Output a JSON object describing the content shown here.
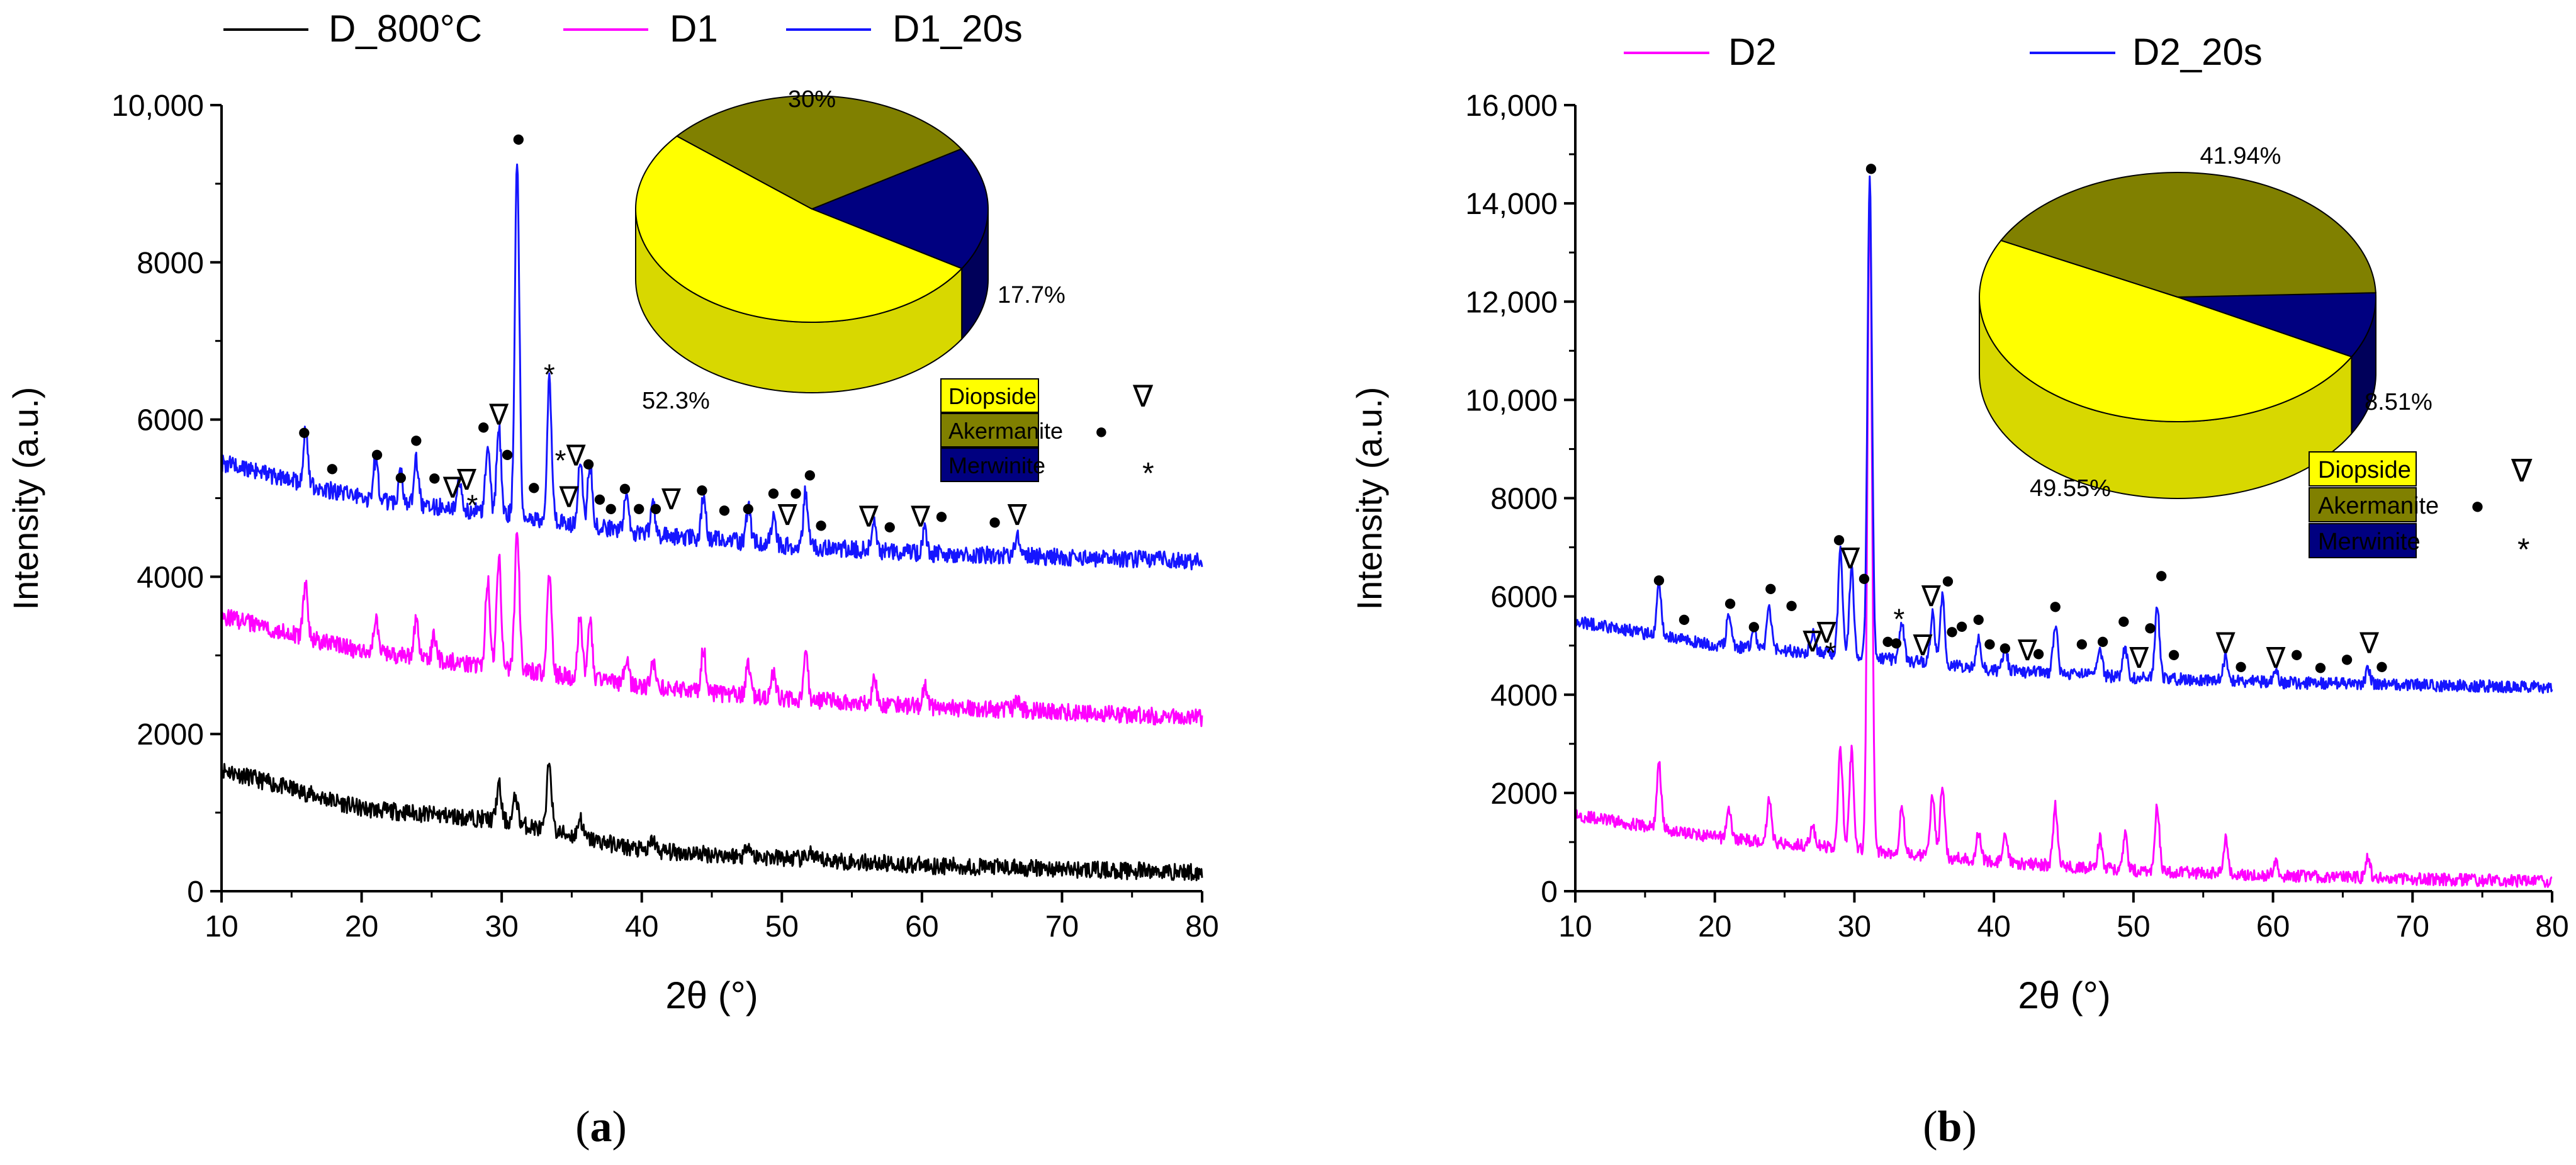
{
  "colors": {
    "black": "#000000",
    "magenta": "#ff00ff",
    "blue": "#1515ff",
    "diopside": "#ffff00",
    "diopside_side": "#d8d800",
    "akermanite": "#808000",
    "akermanite_side": "#5c5c00",
    "merwinite": "#000080",
    "merwinite_side": "#00005a"
  },
  "chart_data": [
    {
      "type": "line",
      "panel_label": "(a)",
      "panel_letter": "a",
      "xlabel": "2θ (°)",
      "ylabel": "Intensity (a.u.)",
      "xlim": [
        10,
        80
      ],
      "ylim": [
        0,
        10000
      ],
      "xticks": [
        "10",
        "20",
        "30",
        "40",
        "50",
        "60",
        "70",
        "80"
      ],
      "yticks": [
        "0",
        "2000",
        "4000",
        "6000",
        "8000",
        "10,000"
      ],
      "legend": [
        {
          "name": "D_800°C",
          "color": "#000000"
        },
        {
          "name": "D1",
          "color": "#ff00ff"
        },
        {
          "name": "D1_20s",
          "color": "#1515ff"
        }
      ],
      "series": [
        {
          "name": "D_800°C",
          "color": "#000000",
          "baseline": [
            [
              10,
              1550
            ],
            [
              20,
              1050
            ],
            [
              30,
              900
            ],
            [
              40,
              520
            ],
            [
              50,
              420
            ],
            [
              60,
              330
            ],
            [
              70,
              280
            ],
            [
              80,
              240
            ]
          ],
          "peaks": [
            [
              29.8,
              450
            ],
            [
              31.0,
              350
            ],
            [
              33.4,
              900
            ],
            [
              35.6,
              250
            ],
            [
              40.8,
              150
            ],
            [
              47.6,
              180
            ],
            [
              52.0,
              100
            ]
          ]
        },
        {
          "name": "D1",
          "color": "#ff00ff",
          "baseline": [
            [
              10,
              3500
            ],
            [
              20,
              3050
            ],
            [
              30,
              2850
            ],
            [
              40,
              2600
            ],
            [
              50,
              2450
            ],
            [
              60,
              2350
            ],
            [
              70,
              2280
            ],
            [
              80,
              2200
            ]
          ],
          "peaks": [
            [
              16.0,
              700
            ],
            [
              21.0,
              450
            ],
            [
              23.9,
              500
            ],
            [
              25.2,
              300
            ],
            [
              29.0,
              1100
            ],
            [
              29.8,
              1400
            ],
            [
              31.1,
              1800
            ],
            [
              33.4,
              1300
            ],
            [
              35.6,
              800
            ],
            [
              36.3,
              750
            ],
            [
              38.9,
              350
            ],
            [
              40.8,
              350
            ],
            [
              44.4,
              550
            ],
            [
              47.6,
              400
            ],
            [
              49.4,
              300
            ],
            [
              51.7,
              650
            ],
            [
              56.6,
              300
            ],
            [
              60.2,
              250
            ],
            [
              66.8,
              150
            ]
          ]
        },
        {
          "name": "D1_20s",
          "color": "#1515ff",
          "baseline": [
            [
              10,
              5450
            ],
            [
              20,
              5000
            ],
            [
              30,
              4800
            ],
            [
              40,
              4550
            ],
            [
              50,
              4400
            ],
            [
              60,
              4300
            ],
            [
              70,
              4250
            ],
            [
              80,
              4200
            ]
          ],
          "peaks": [
            [
              16.0,
              700
            ],
            [
              21.0,
              500
            ],
            [
              22.8,
              350
            ],
            [
              23.9,
              550
            ],
            [
              27.0,
              400
            ],
            [
              29.0,
              900
            ],
            [
              29.8,
              1100
            ],
            [
              31.1,
              4500
            ],
            [
              33.4,
              1800
            ],
            [
              35.6,
              850
            ],
            [
              36.3,
              800
            ],
            [
              38.9,
              450
            ],
            [
              40.8,
              400
            ],
            [
              44.4,
              550
            ],
            [
              47.6,
              450
            ],
            [
              49.4,
              350
            ],
            [
              51.7,
              700
            ],
            [
              56.6,
              400
            ],
            [
              60.2,
              300
            ],
            [
              66.8,
              250
            ]
          ]
        }
      ],
      "markers": [
        {
          "x": 15.9,
          "y": 5840,
          "t": "●"
        },
        {
          "x": 17.9,
          "y": 5380,
          "t": "●"
        },
        {
          "x": 21.1,
          "y": 5560,
          "t": "●"
        },
        {
          "x": 22.8,
          "y": 5270,
          "t": "●"
        },
        {
          "x": 23.9,
          "y": 5740,
          "t": "●"
        },
        {
          "x": 25.2,
          "y": 5260,
          "t": "●"
        },
        {
          "x": 26.5,
          "y": 5120,
          "t": "∇"
        },
        {
          "x": 27.5,
          "y": 5220,
          "t": "∇"
        },
        {
          "x": 27.9,
          "y": 4960,
          "t": "*"
        },
        {
          "x": 28.7,
          "y": 5910,
          "t": "●"
        },
        {
          "x": 29.8,
          "y": 6050,
          "t": "∇"
        },
        {
          "x": 30.4,
          "y": 5560,
          "t": "●"
        },
        {
          "x": 31.2,
          "y": 9570,
          "t": "●"
        },
        {
          "x": 32.3,
          "y": 5140,
          "t": "●"
        },
        {
          "x": 33.4,
          "y": 6620,
          "t": "*"
        },
        {
          "x": 34.2,
          "y": 5530,
          "t": "*"
        },
        {
          "x": 35.3,
          "y": 5530,
          "t": "∇"
        },
        {
          "x": 34.8,
          "y": 5000,
          "t": "∇"
        },
        {
          "x": 36.2,
          "y": 5440,
          "t": "●"
        },
        {
          "x": 37.0,
          "y": 4990,
          "t": "●"
        },
        {
          "x": 37.8,
          "y": 4870,
          "t": "●"
        },
        {
          "x": 38.8,
          "y": 5130,
          "t": "●"
        },
        {
          "x": 39.8,
          "y": 4870,
          "t": "●"
        },
        {
          "x": 41.0,
          "y": 4870,
          "t": "●"
        },
        {
          "x": 42.1,
          "y": 4970,
          "t": "∇"
        },
        {
          "x": 44.3,
          "y": 5110,
          "t": "●"
        },
        {
          "x": 45.9,
          "y": 4850,
          "t": "●"
        },
        {
          "x": 47.6,
          "y": 4870,
          "t": "●"
        },
        {
          "x": 49.4,
          "y": 5070,
          "t": "●"
        },
        {
          "x": 50.4,
          "y": 4770,
          "t": "∇"
        },
        {
          "x": 51.0,
          "y": 5070,
          "t": "●"
        },
        {
          "x": 52.0,
          "y": 5300,
          "t": "●"
        },
        {
          "x": 52.8,
          "y": 4660,
          "t": "●"
        },
        {
          "x": 56.2,
          "y": 4750,
          "t": "∇"
        },
        {
          "x": 57.7,
          "y": 4640,
          "t": "●"
        },
        {
          "x": 59.9,
          "y": 4750,
          "t": "∇"
        },
        {
          "x": 61.4,
          "y": 4770,
          "t": "●"
        },
        {
          "x": 65.2,
          "y": 4700,
          "t": "●"
        },
        {
          "x": 66.8,
          "y": 4770,
          "t": "∇"
        }
      ],
      "pie": {
        "slices": [
          {
            "name": "Diopside",
            "value": 52.3,
            "label": "52.3%",
            "symbol": "∇"
          },
          {
            "name": "Akermanite",
            "value": 30,
            "label": "30%",
            "symbol": "●"
          },
          {
            "name": "Merwinite",
            "value": 17.7,
            "label": "17.7%",
            "symbol": "*"
          }
        ]
      }
    },
    {
      "type": "line",
      "panel_label": "(b)",
      "panel_letter": "b",
      "xlabel": "2θ (°)",
      "ylabel": "Intensity (a.u.)",
      "xlim": [
        10,
        80
      ],
      "ylim": [
        0,
        16000
      ],
      "xticks": [
        "10",
        "20",
        "30",
        "40",
        "50",
        "60",
        "70",
        "80"
      ],
      "yticks": [
        "0",
        "2000",
        "4000",
        "6000",
        "8000",
        "10,000",
        "12,000",
        "14,000",
        "16,000"
      ],
      "legend": [
        {
          "name": "D2",
          "color": "#ff00ff"
        },
        {
          "name": "D2_20s",
          "color": "#1515ff"
        }
      ],
      "series": [
        {
          "name": "D2",
          "color": "#ff00ff",
          "baseline": [
            [
              10,
              1550
            ],
            [
              20,
              1100
            ],
            [
              30,
              850
            ],
            [
              40,
              600
            ],
            [
              50,
              420
            ],
            [
              60,
              320
            ],
            [
              70,
              250
            ],
            [
              80,
              200
            ]
          ],
          "peaks": [
            [
              16.0,
              1300
            ],
            [
              21.0,
              600
            ],
            [
              23.9,
              900
            ],
            [
              27.0,
              400
            ],
            [
              29.0,
              2000
            ],
            [
              29.8,
              2000
            ],
            [
              31.1,
              13500
            ],
            [
              33.4,
              1000
            ],
            [
              35.6,
              1300
            ],
            [
              36.3,
              1400
            ],
            [
              38.9,
              600
            ],
            [
              40.8,
              500
            ],
            [
              44.4,
              1200
            ],
            [
              47.6,
              600
            ],
            [
              49.4,
              700
            ],
            [
              51.7,
              1300
            ],
            [
              56.6,
              700
            ],
            [
              60.2,
              300
            ],
            [
              66.8,
              400
            ]
          ]
        },
        {
          "name": "D2_20s",
          "color": "#1515ff",
          "baseline": [
            [
              10,
              5500
            ],
            [
              20,
              5000
            ],
            [
              30,
              4800
            ],
            [
              40,
              4500
            ],
            [
              50,
              4350
            ],
            [
              60,
              4250
            ],
            [
              70,
              4200
            ],
            [
              80,
              4150
            ]
          ],
          "peaks": [
            [
              16.0,
              1000
            ],
            [
              21.0,
              700
            ],
            [
              22.8,
              400
            ],
            [
              23.9,
              800
            ],
            [
              27.0,
              400
            ],
            [
              29.0,
              2100
            ],
            [
              29.8,
              1800
            ],
            [
              31.1,
              9800
            ],
            [
              33.4,
              800
            ],
            [
              35.6,
              1000
            ],
            [
              36.3,
              1400
            ],
            [
              38.9,
              600
            ],
            [
              40.8,
              500
            ],
            [
              44.4,
              1000
            ],
            [
              47.6,
              500
            ],
            [
              49.4,
              600
            ],
            [
              51.7,
              1500
            ],
            [
              56.6,
              500
            ],
            [
              60.2,
              300
            ],
            [
              66.8,
              300
            ]
          ]
        }
      ],
      "markers": [
        {
          "x": 16.0,
          "y": 6340,
          "t": "●"
        },
        {
          "x": 17.8,
          "y": 5540,
          "t": "●"
        },
        {
          "x": 21.1,
          "y": 5870,
          "t": "●"
        },
        {
          "x": 22.8,
          "y": 5390,
          "t": "●"
        },
        {
          "x": 24.0,
          "y": 6170,
          "t": "●"
        },
        {
          "x": 25.5,
          "y": 5820,
          "t": "●"
        },
        {
          "x": 27.0,
          "y": 5060,
          "t": "∇"
        },
        {
          "x": 28.0,
          "y": 5240,
          "t": "∇"
        },
        {
          "x": 28.3,
          "y": 4930,
          "t": "*"
        },
        {
          "x": 28.9,
          "y": 7160,
          "t": "●"
        },
        {
          "x": 29.7,
          "y": 6750,
          "t": "∇"
        },
        {
          "x": 30.7,
          "y": 6370,
          "t": "●"
        },
        {
          "x": 31.2,
          "y": 14720,
          "t": "●"
        },
        {
          "x": 32.4,
          "y": 5090,
          "t": "●"
        },
        {
          "x": 33.2,
          "y": 5620,
          "t": "*"
        },
        {
          "x": 33.0,
          "y": 5060,
          "t": "●"
        },
        {
          "x": 34.9,
          "y": 4980,
          "t": "∇"
        },
        {
          "x": 35.5,
          "y": 5980,
          "t": "∇"
        },
        {
          "x": 36.7,
          "y": 6320,
          "t": "●"
        },
        {
          "x": 37.0,
          "y": 5290,
          "t": "●"
        },
        {
          "x": 37.7,
          "y": 5400,
          "t": "●"
        },
        {
          "x": 38.9,
          "y": 5540,
          "t": "●"
        },
        {
          "x": 39.7,
          "y": 5040,
          "t": "●"
        },
        {
          "x": 40.8,
          "y": 4960,
          "t": "●"
        },
        {
          "x": 42.4,
          "y": 4880,
          "t": "∇"
        },
        {
          "x": 43.2,
          "y": 4840,
          "t": "●"
        },
        {
          "x": 44.4,
          "y": 5800,
          "t": "●"
        },
        {
          "x": 46.3,
          "y": 5040,
          "t": "●"
        },
        {
          "x": 47.8,
          "y": 5090,
          "t": "●"
        },
        {
          "x": 49.3,
          "y": 5500,
          "t": "●"
        },
        {
          "x": 50.4,
          "y": 4730,
          "t": "∇"
        },
        {
          "x": 51.2,
          "y": 5370,
          "t": "●"
        },
        {
          "x": 52.0,
          "y": 6430,
          "t": "●"
        },
        {
          "x": 52.9,
          "y": 4820,
          "t": "●"
        },
        {
          "x": 56.6,
          "y": 5030,
          "t": "∇"
        },
        {
          "x": 57.7,
          "y": 4580,
          "t": "●"
        },
        {
          "x": 60.2,
          "y": 4730,
          "t": "∇"
        },
        {
          "x": 61.7,
          "y": 4820,
          "t": "●"
        },
        {
          "x": 63.4,
          "y": 4560,
          "t": "●"
        },
        {
          "x": 65.3,
          "y": 4730,
          "t": "●"
        },
        {
          "x": 66.9,
          "y": 5030,
          "t": "∇"
        },
        {
          "x": 67.8,
          "y": 4580,
          "t": "●"
        }
      ],
      "pie": {
        "slices": [
          {
            "name": "Diopside",
            "value": 49.55,
            "label": "49.55%",
            "symbol": "∇"
          },
          {
            "name": "Akermanite",
            "value": 41.94,
            "label": "41.94%",
            "symbol": "●"
          },
          {
            "name": "Merwinite",
            "value": 8.51,
            "label": "8.51%",
            "symbol": "*"
          }
        ]
      }
    }
  ]
}
